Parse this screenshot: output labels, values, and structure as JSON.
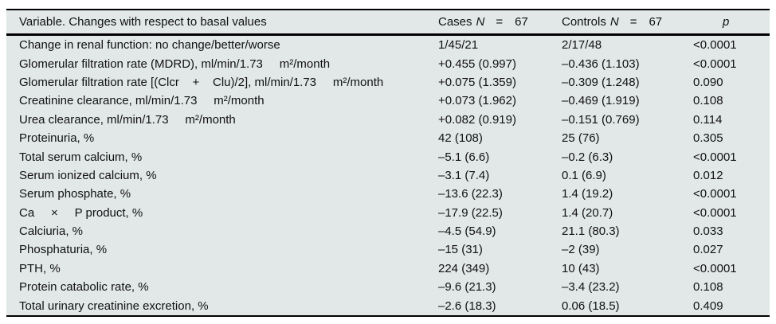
{
  "page": {
    "table_background": "#e2e7e8",
    "rule_color": "#000000",
    "text_color": "#111111"
  },
  "table": {
    "header": {
      "variable": "Variable. Changes with respect to basal values",
      "cases_label": "Cases",
      "cases_n": "N",
      "cases_eq": "=",
      "cases_count": "67",
      "controls_label": "Controls",
      "controls_n": "N",
      "controls_eq": "=",
      "controls_count": "67",
      "p": "p"
    },
    "rows": [
      {
        "variable": "Change in renal function: no change/better/worse",
        "cases": "1/45/21",
        "controls": "2/17/48",
        "p": "<0.0001"
      },
      {
        "variable": "Glomerular filtration rate (MDRD), ml/min/1.73     m²/month",
        "cases": "+0.455 (0.997)",
        "controls": "–0.436 (1.103)",
        "p": "<0.0001"
      },
      {
        "variable": "Glomerular filtration rate [(Clcr    +    Clu)/2], ml/min/1.73     m²/month",
        "cases": "+0.075 (1.359)",
        "controls": "–0.309 (1.248)",
        "p": "0.090"
      },
      {
        "variable": "Creatinine clearance, ml/min/1.73     m²/month",
        "cases": "+0.073 (1.962)",
        "controls": "–0.469 (1.919)",
        "p": "0.108"
      },
      {
        "variable": "Urea clearance, ml/min/1.73     m²/month",
        "cases": "+0.082 (0.919)",
        "controls": "–0.151 (0.769)",
        "p": "0.114"
      },
      {
        "variable": "Proteinuria, %",
        "cases": "42 (108)",
        "controls": "25 (76)",
        "p": "0.305"
      },
      {
        "variable": "Total serum calcium, %",
        "cases": "–5.1 (6.6)",
        "controls": "–0.2 (6.3)",
        "p": "<0.0001"
      },
      {
        "variable": "Serum ionized calcium, %",
        "cases": "–3.1 (7.4)",
        "controls": "0.1 (6.9)",
        "p": "0.012"
      },
      {
        "variable": "Serum phosphate, %",
        "cases": "–13.6 (22.3)",
        "controls": "1.4 (19.2)",
        "p": "<0.0001"
      },
      {
        "variable": "Ca     ×     P product, %",
        "cases": "–17.9 (22.5)",
        "controls": "1.4 (20.7)",
        "p": "<0.0001"
      },
      {
        "variable": "Calciuria, %",
        "cases": "–4.5 (54.9)",
        "controls": "21.1 (80.3)",
        "p": "0.033"
      },
      {
        "variable": "Phosphaturia, %",
        "cases": "–15 (31)",
        "controls": "–2 (39)",
        "p": "0.027"
      },
      {
        "variable": "PTH, %",
        "cases": "224 (349)",
        "controls": "10 (43)",
        "p": "<0.0001"
      },
      {
        "variable": "Protein catabolic rate, %",
        "cases": "–9.6 (21.3)",
        "controls": "–3.4 (23.2)",
        "p": "0.108"
      },
      {
        "variable": "Total urinary creatinine excretion, %",
        "cases": "–2.6 (18.3)",
        "controls": "0.06 (18.5)",
        "p": "0.409"
      }
    ]
  }
}
